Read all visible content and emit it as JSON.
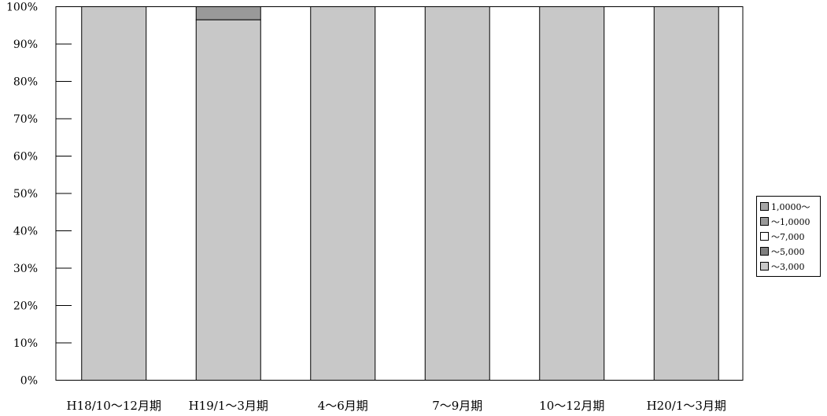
{
  "chart_data": {
    "type": "bar",
    "stacked": true,
    "percent": true,
    "categories": [
      "H18/10～12月期",
      "H19/1～3月期",
      "4～6月期",
      "7～9月期",
      "10～12月期",
      "H20/1～3月期"
    ],
    "series": [
      {
        "name": "～3,000",
        "color": "#c8c8c8",
        "values": [
          100,
          96.5,
          100,
          100,
          100,
          100
        ]
      },
      {
        "name": "～5,000",
        "color": "#808080",
        "values": [
          0,
          0,
          0,
          0,
          0,
          0
        ]
      },
      {
        "name": "～7,000",
        "color": "#ffffff",
        "values": [
          0,
          0,
          0,
          0,
          0,
          0
        ]
      },
      {
        "name": "～1,0000",
        "color": "#999999",
        "values": [
          0,
          3.5,
          0,
          0,
          0,
          0
        ]
      },
      {
        "name": "1,0000～",
        "color": "#a6a6a6",
        "values": [
          0,
          0,
          0,
          0,
          0,
          0
        ]
      }
    ],
    "ylim": [
      0,
      100
    ],
    "yticks": [
      "0%",
      "10%",
      "20%",
      "30%",
      "40%",
      "50%",
      "60%",
      "70%",
      "80%",
      "90%",
      "100%"
    ],
    "legend_order": [
      "1,0000～",
      "～1,0000",
      "～7,000",
      "～5,000",
      "～3,000"
    ],
    "legend_position": "right",
    "title": "",
    "xlabel": "",
    "ylabel": "",
    "grid": false
  }
}
